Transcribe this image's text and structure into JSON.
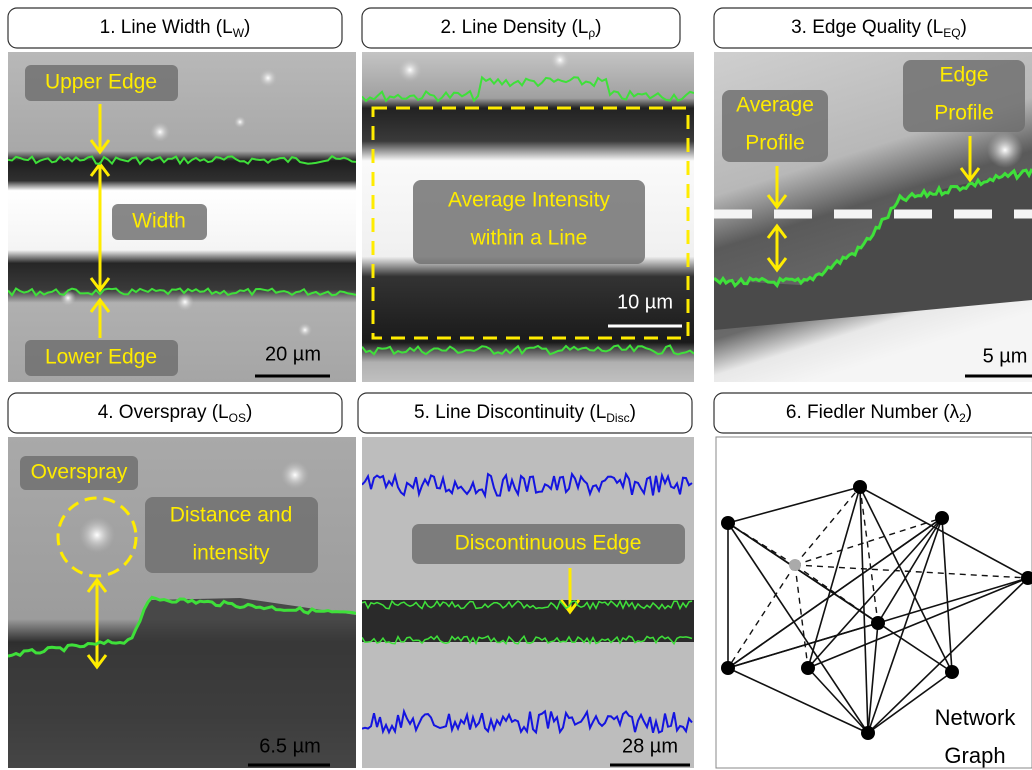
{
  "panels": [
    {
      "title": {
        "text": "1. Line Width (L",
        "sub": "W",
        "tail": ")"
      },
      "labels": [
        [
          "Upper Edge"
        ],
        [
          "Width"
        ],
        [
          "Lower Edge"
        ]
      ],
      "scale": "20 µm"
    },
    {
      "title": {
        "text": "2. Line Density (L",
        "sub": "ρ",
        "tail": ")"
      },
      "labels": [
        [
          "Average Intensity",
          "within a Line"
        ]
      ],
      "scale": "10 µm"
    },
    {
      "title": {
        "text": "3. Edge Quality (L",
        "sub": "EQ",
        "tail": ")"
      },
      "labels": [
        [
          "Average",
          "Profile"
        ],
        [
          "Edge",
          "Profile"
        ]
      ],
      "scale": "5 µm"
    },
    {
      "title": {
        "text": "4. Overspray (L",
        "sub": "OS",
        "tail": ")"
      },
      "labels": [
        [
          "Overspray"
        ],
        [
          "Distance and",
          "intensity"
        ]
      ],
      "scale": "6.5 µm"
    },
    {
      "title": {
        "text": "5. Line Discontinuity (L",
        "sub": "Disc",
        "tail": ")"
      },
      "labels": [
        [
          "Discontinuous Edge"
        ]
      ],
      "scale": "28 µm"
    },
    {
      "title": {
        "text": "6. Fiedler Number (λ",
        "sub": "2",
        "tail": ")"
      },
      "labels": [
        [
          "Network",
          "Graph"
        ]
      ]
    }
  ]
}
